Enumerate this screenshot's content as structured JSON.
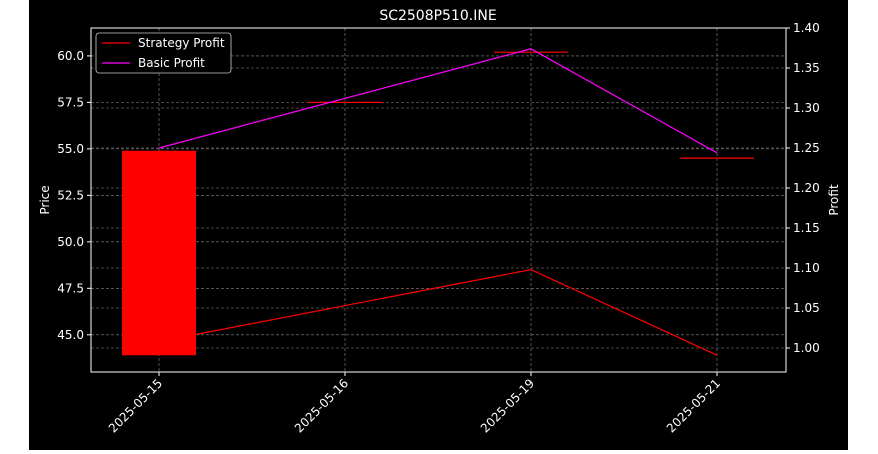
{
  "chart_data": {
    "type": "candlestick",
    "title": "SC2508P510.INE",
    "xlabel": "",
    "ylabel_left": "Price",
    "ylabel_right": "Profit",
    "categories": [
      "2025-05-15",
      "2025-05-16",
      "2025-05-19",
      "2025-05-21"
    ],
    "candles": [
      {
        "date": "2025-05-15",
        "open": 54.9,
        "close": 43.9,
        "high": 54.9,
        "low": 43.9,
        "color": "#ff0000"
      },
      {
        "date": "2025-05-16",
        "open": 57.5,
        "close": 57.5,
        "high": 57.5,
        "low": 57.5,
        "color": "#ff0000"
      },
      {
        "date": "2025-05-19",
        "open": 60.2,
        "close": 60.2,
        "high": 60.2,
        "low": 60.2,
        "color": "#ff0000"
      },
      {
        "date": "2025-05-21",
        "open": 54.5,
        "close": 54.5,
        "high": 54.5,
        "low": 54.5,
        "color": "#ff0000"
      }
    ],
    "y_left": {
      "lim": [
        43.0,
        61.5
      ],
      "ticks": [
        45.0,
        47.5,
        50.0,
        52.5,
        55.0,
        57.5,
        60.0
      ]
    },
    "y_right": {
      "lim": [
        0.97,
        1.4
      ],
      "ticks": [
        1.0,
        1.05,
        1.1,
        1.15,
        1.2,
        1.25,
        1.3,
        1.35,
        1.4
      ]
    },
    "series": [
      {
        "name": "Strategy Profit",
        "color": "#ff0000",
        "x": [
          "2025-05-15",
          "2025-05-19",
          "2025-05-21"
        ],
        "values": [
          1.008,
          1.098,
          0.991
        ]
      },
      {
        "name": "Basic Profit",
        "color": "#ff00ff",
        "x": [
          "2025-05-15",
          "2025-05-19",
          "2025-05-21"
        ],
        "values": [
          1.25,
          1.374,
          1.244
        ]
      }
    ],
    "grid": true,
    "legend": "upper-left",
    "background": "#000000"
  }
}
